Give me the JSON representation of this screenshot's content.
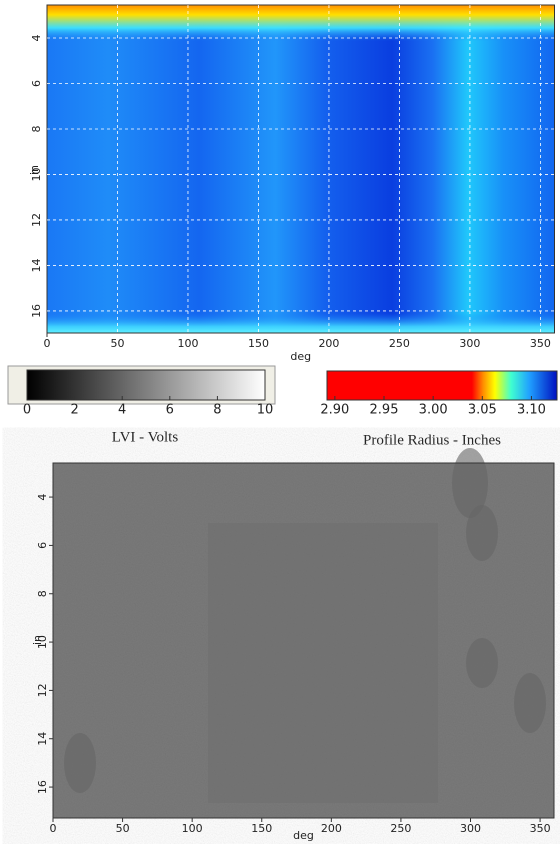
{
  "chart_data": [
    {
      "type": "heatmap",
      "x_label": "deg",
      "y_label": "in",
      "xlim": [
        0,
        360
      ],
      "ylim": [
        2.55,
        16.97
      ],
      "xticks": [
        0,
        50,
        100,
        150,
        200,
        250,
        300,
        350
      ],
      "yticks": [
        4,
        6,
        8,
        10,
        12,
        14,
        16
      ],
      "grid": true,
      "colormap": "jet"
    },
    {
      "type": "colorbar",
      "title": "LVI - Volts",
      "xlim": [
        0,
        10
      ],
      "xticks": [
        0,
        2,
        4,
        6,
        8,
        10
      ],
      "colormap": "gray"
    },
    {
      "type": "colorbar",
      "title": "Profile Radius - Inches",
      "xlim": [
        2.892,
        3.126
      ],
      "xticks": [
        {
          "value": 2.9,
          "label": "2.90"
        },
        {
          "value": 2.95,
          "label": "2.95"
        },
        {
          "value": 3.0,
          "label": "3.00"
        },
        {
          "value": 3.05,
          "label": "3.05"
        },
        {
          "value": 3.1,
          "label": "3.10"
        }
      ],
      "colormap": "jet"
    },
    {
      "type": "heatmap",
      "x_label": "deg",
      "y_label": "in",
      "xlim": [
        0,
        360
      ],
      "ylim": [
        2.59,
        17.28
      ],
      "xticks": [
        0,
        50,
        100,
        150,
        200,
        250,
        300,
        350
      ],
      "yticks": [
        4,
        6,
        8,
        10,
        12,
        14,
        16
      ],
      "grid": false,
      "colormap": "gray"
    }
  ]
}
